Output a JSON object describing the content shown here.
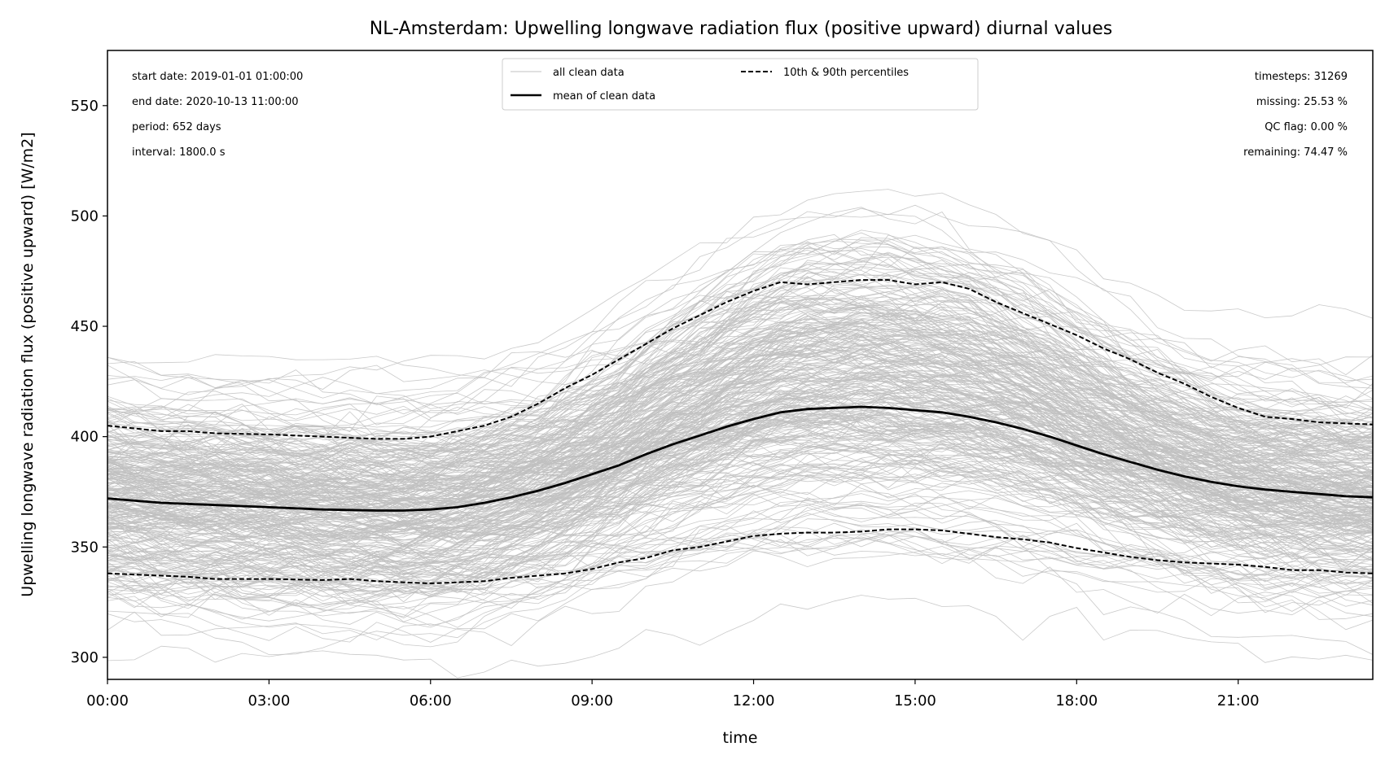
{
  "chart_data": {
    "type": "line",
    "title": "NL-Amsterdam: Upwelling longwave radiation flux (positive upward) diurnal values",
    "xlabel": "time",
    "ylabel": "Upwelling longwave radiation flux (positive upward) [W/m2]",
    "xlim": [
      0,
      23.5
    ],
    "ylim": [
      290,
      575
    ],
    "x_ticks": [
      {
        "x": 0,
        "label": "00:00"
      },
      {
        "x": 3,
        "label": "03:00"
      },
      {
        "x": 6,
        "label": "06:00"
      },
      {
        "x": 9,
        "label": "09:00"
      },
      {
        "x": 12,
        "label": "12:00"
      },
      {
        "x": 15,
        "label": "15:00"
      },
      {
        "x": 18,
        "label": "18:00"
      },
      {
        "x": 21,
        "label": "21:00"
      }
    ],
    "y_ticks": [
      300,
      350,
      400,
      450,
      500,
      550
    ],
    "legend": {
      "placement": "upper center",
      "entries": [
        "all clean data",
        "mean of clean data",
        "10th & 90th percentiles"
      ]
    },
    "stats_left": [
      "start date: 2019-01-01 01:00:00",
      "end date: 2020-10-13 11:00:00",
      "period: 652 days",
      "interval: 1800.0 s"
    ],
    "stats_right": [
      "timesteps: 31269",
      "missing: 25.53 %",
      "QC flag: 0.00 %",
      "remaining: 74.47 %"
    ],
    "series": [
      {
        "name": "mean of clean data",
        "style": "solid",
        "x": [
          0,
          1,
          2,
          3,
          4,
          5,
          5.5,
          6,
          6.5,
          7,
          7.5,
          8,
          8.5,
          9,
          9.5,
          10,
          10.5,
          11,
          11.5,
          12,
          12.5,
          13,
          13.5,
          14,
          14.5,
          15,
          15.5,
          16,
          16.5,
          17,
          17.5,
          18,
          18.5,
          19,
          19.5,
          20,
          20.5,
          21,
          21.5,
          22,
          22.5,
          23,
          23.5
        ],
        "values": [
          372,
          370,
          369,
          368,
          367,
          366.5,
          366.5,
          367,
          368,
          370,
          372.5,
          375.5,
          379,
          383,
          387,
          392,
          396.5,
          400.5,
          404.5,
          408,
          411,
          412.5,
          413,
          413.5,
          413,
          412,
          411,
          409,
          406.5,
          403.5,
          400,
          396,
          392,
          388.5,
          385,
          382,
          379.5,
          377.5,
          376,
          375,
          374,
          373,
          372.5
        ]
      },
      {
        "name": "90th percentile",
        "style": "dashed",
        "x": [
          0,
          1,
          1.5,
          2,
          3,
          4,
          5,
          5.5,
          6,
          6.5,
          7,
          7.5,
          8,
          8.5,
          9,
          9.5,
          10,
          10.5,
          11,
          11.5,
          12,
          12.5,
          13,
          13.5,
          14,
          14.5,
          15,
          15.5,
          16,
          16.5,
          17,
          17.5,
          18,
          18.5,
          19,
          19.5,
          20,
          20.5,
          21,
          21.5,
          22,
          22.5,
          23,
          23.5
        ],
        "values": [
          405,
          402.5,
          402.5,
          401.5,
          401,
          400,
          399,
          399,
          400,
          402.5,
          405,
          409,
          415,
          422,
          428,
          435,
          442,
          449,
          455,
          461,
          466,
          470,
          469,
          470,
          471,
          471,
          469,
          470,
          467,
          461,
          456,
          451,
          446,
          440,
          435,
          429,
          424,
          418,
          413,
          409,
          408,
          406.5,
          406,
          405.5
        ]
      },
      {
        "name": "10th percentile",
        "style": "dashed",
        "x": [
          0,
          1,
          1.5,
          2,
          3,
          4,
          4.5,
          5,
          5.5,
          6,
          6.5,
          7,
          7.5,
          8,
          8.5,
          9,
          9.5,
          10,
          10.5,
          11,
          11.5,
          12,
          12.5,
          13,
          13.5,
          14,
          14.5,
          15,
          15.5,
          16,
          16.5,
          17,
          17.5,
          18,
          18.5,
          19,
          19.5,
          20,
          20.5,
          21,
          21.5,
          22,
          22.5,
          23,
          23.5
        ],
        "values": [
          338,
          337,
          336.5,
          335.5,
          335.5,
          335,
          335.5,
          334.5,
          334,
          333.5,
          334,
          334.5,
          336,
          337,
          338,
          340,
          343,
          345,
          348.5,
          350,
          352.5,
          355,
          356,
          356.5,
          356.5,
          357,
          358,
          358,
          357.5,
          356,
          354.5,
          353.5,
          352,
          349.5,
          347.5,
          345.5,
          344,
          343,
          342.5,
          342,
          341,
          339.5,
          339.5,
          338.5,
          338
        ]
      }
    ],
    "colors": {
      "clean_data": "#c0c0c0",
      "mean": "#000000",
      "percentiles": "#000000"
    }
  }
}
